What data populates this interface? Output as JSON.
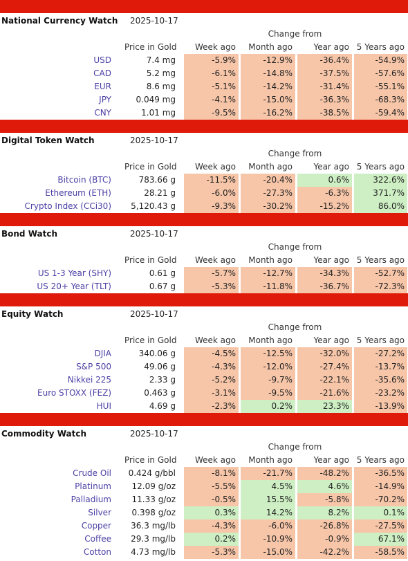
{
  "colors": {
    "bar_red": "#e01a0a",
    "negative_fill": "#f7c6a9",
    "positive_fill": "#cdefc3",
    "name_link": "#4a3fa4"
  },
  "change_from_label": "Change from",
  "columns": [
    "Price in Gold",
    "Week ago",
    "Month ago",
    "Year ago",
    "5 Years ago"
  ],
  "sections": [
    {
      "title": "National Currency Watch",
      "date": "2025-10-17",
      "rows": [
        {
          "name": "USD",
          "price": "7.4 mg",
          "changes": [
            "-5.9%",
            "-12.9%",
            "-36.4%",
            "-54.9%"
          ]
        },
        {
          "name": "CAD",
          "price": "5.2 mg",
          "changes": [
            "-6.1%",
            "-14.8%",
            "-37.5%",
            "-57.6%"
          ]
        },
        {
          "name": "EUR",
          "price": "8.6 mg",
          "changes": [
            "-5.1%",
            "-14.2%",
            "-31.4%",
            "-55.1%"
          ]
        },
        {
          "name": "JPY",
          "price": "0.049 mg",
          "changes": [
            "-4.1%",
            "-15.0%",
            "-36.3%",
            "-68.3%"
          ]
        },
        {
          "name": "CNY",
          "price": "1.01 mg",
          "changes": [
            "-9.5%",
            "-16.2%",
            "-38.5%",
            "-59.4%"
          ]
        }
      ]
    },
    {
      "title": "Digital Token Watch",
      "date": "2025-10-17",
      "rows": [
        {
          "name": "Bitcoin (BTC)",
          "price": "783.66 g",
          "changes": [
            "-11.5%",
            "-20.4%",
            "0.6%",
            "322.6%"
          ]
        },
        {
          "name": "Ethereum (ETH)",
          "price": "28.21 g",
          "changes": [
            "-6.0%",
            "-27.3%",
            "-6.3%",
            "371.7%"
          ]
        },
        {
          "name": "Crypto Index (CCi30)",
          "price": "5,120.43 g",
          "changes": [
            "-9.3%",
            "-30.2%",
            "-15.2%",
            "86.0%"
          ]
        }
      ]
    },
    {
      "title": "Bond Watch",
      "date": "2025-10-17",
      "rows": [
        {
          "name": "US 1-3 Year (SHY)",
          "price": "0.61 g",
          "changes": [
            "-5.7%",
            "-12.7%",
            "-34.3%",
            "-52.7%"
          ]
        },
        {
          "name": "US 20+ Year (TLT)",
          "price": "0.67 g",
          "changes": [
            "-5.3%",
            "-11.8%",
            "-36.7%",
            "-72.3%"
          ]
        }
      ]
    },
    {
      "title": "Equity Watch",
      "date": "2025-10-17",
      "rows": [
        {
          "name": "DJIA",
          "price": "340.06 g",
          "changes": [
            "-4.5%",
            "-12.5%",
            "-32.0%",
            "-27.2%"
          ]
        },
        {
          "name": "S&P 500",
          "price": "49.06 g",
          "changes": [
            "-4.3%",
            "-12.0%",
            "-27.4%",
            "-13.7%"
          ]
        },
        {
          "name": "Nikkei 225",
          "price": "2.33 g",
          "changes": [
            "-5.2%",
            "-9.7%",
            "-22.1%",
            "-35.6%"
          ]
        },
        {
          "name": "Euro STOXX (FEZ)",
          "price": "0.463 g",
          "changes": [
            "-3.1%",
            "-9.5%",
            "-21.6%",
            "-23.2%"
          ]
        },
        {
          "name": "HUI",
          "price": "4.69 g",
          "changes": [
            "-2.3%",
            "0.2%",
            "23.3%",
            "-13.9%"
          ]
        }
      ]
    },
    {
      "title": "Commodity Watch",
      "date": "2025-10-17",
      "rows": [
        {
          "name": "Crude Oil",
          "price": "0.424 g/bbl",
          "changes": [
            "-8.1%",
            "-21.7%",
            "-48.2%",
            "-36.5%"
          ]
        },
        {
          "name": "Platinum",
          "price": "12.09 g/oz",
          "changes": [
            "-5.5%",
            "4.5%",
            "4.6%",
            "-14.9%"
          ]
        },
        {
          "name": "Palladium",
          "price": "11.33 g/oz",
          "changes": [
            "-0.5%",
            "15.5%",
            "-5.8%",
            "-70.2%"
          ]
        },
        {
          "name": "Silver",
          "price": "0.398 g/oz",
          "changes": [
            "0.3%",
            "14.2%",
            "8.2%",
            "0.1%"
          ]
        },
        {
          "name": "Copper",
          "price": "36.3 mg/lb",
          "changes": [
            "-4.3%",
            "-6.0%",
            "-26.8%",
            "-27.5%"
          ]
        },
        {
          "name": "Coffee",
          "price": "29.3 mg/lb",
          "changes": [
            "0.2%",
            "-10.9%",
            "-0.9%",
            "67.1%"
          ]
        },
        {
          "name": "Cotton",
          "price": "4.73 mg/lb",
          "changes": [
            "-5.3%",
            "-15.0%",
            "-42.2%",
            "-58.5%"
          ]
        }
      ]
    }
  ]
}
